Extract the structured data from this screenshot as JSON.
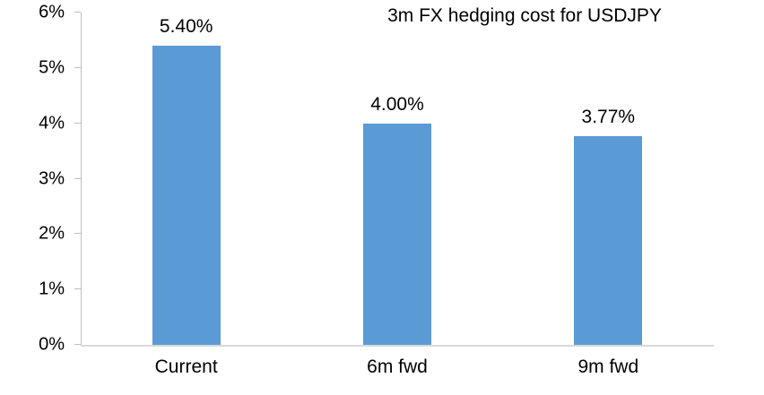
{
  "chart_data": {
    "type": "bar",
    "title": "3m FX hedging cost for USDJPY",
    "categories": [
      "Current",
      "6m fwd",
      "9m fwd"
    ],
    "values": [
      5.4,
      4.0,
      3.77
    ],
    "data_labels": [
      "5.40%",
      "4.00%",
      "3.77%"
    ],
    "y_ticks": [
      "0%",
      "1%",
      "2%",
      "3%",
      "4%",
      "5%",
      "6%"
    ],
    "ylim": [
      0,
      6
    ],
    "xlabel": "",
    "ylabel": "",
    "grid": false,
    "legend": "none",
    "bar_color": "#5b9bd5",
    "axis_color": "#bfbfbf"
  }
}
